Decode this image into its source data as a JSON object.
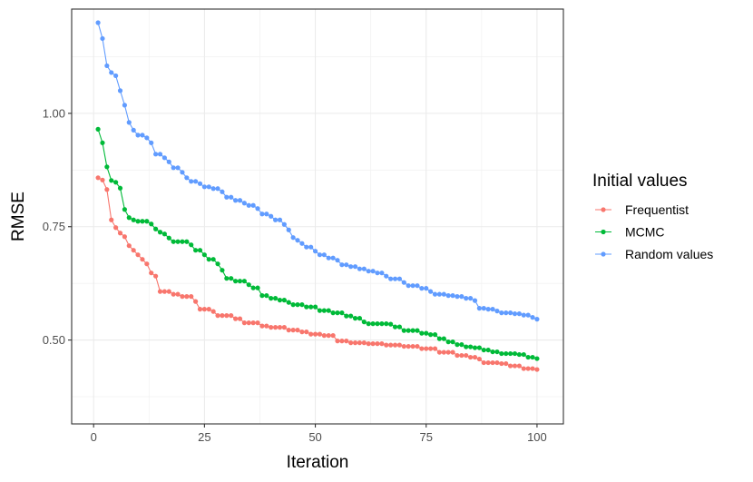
{
  "chart_data": {
    "type": "line",
    "xlabel": "Iteration",
    "ylabel": "RMSE",
    "xlim": [
      -4.95,
      105.95
    ],
    "ylim": [
      0.315,
      1.23
    ],
    "xticks": [
      0,
      25,
      50,
      75,
      100
    ],
    "xtick_labels": [
      "0",
      "25",
      "50",
      "75",
      "100"
    ],
    "yticks": [
      0.5,
      0.75,
      1.0
    ],
    "ytick_labels": [
      "0.50",
      "0.75",
      "1.00"
    ],
    "grid": true,
    "legend": {
      "title": "Initial values",
      "placement": "right",
      "entries": [
        "Frequentist",
        "MCMC",
        "Random values"
      ]
    },
    "series": [
      {
        "name": "Frequentist",
        "color": "#F8766D",
        "anchors": [
          [
            1,
            0.858
          ],
          [
            2,
            0.853
          ],
          [
            3,
            0.832
          ],
          [
            4,
            0.765
          ],
          [
            5,
            0.748
          ],
          [
            6,
            0.736
          ],
          [
            7,
            0.728
          ],
          [
            8,
            0.708
          ],
          [
            9,
            0.698
          ],
          [
            10,
            0.688
          ],
          [
            11,
            0.678
          ],
          [
            12,
            0.668
          ],
          [
            13,
            0.648
          ],
          [
            14,
            0.641
          ],
          [
            15,
            0.607
          ],
          [
            18,
            0.601
          ],
          [
            20,
            0.596
          ],
          [
            23,
            0.585
          ],
          [
            24,
            0.568
          ],
          [
            27,
            0.563
          ],
          [
            28,
            0.554
          ],
          [
            32,
            0.547
          ],
          [
            34,
            0.538
          ],
          [
            38,
            0.531
          ],
          [
            40,
            0.528
          ],
          [
            44,
            0.522
          ],
          [
            47,
            0.518
          ],
          [
            49,
            0.513
          ],
          [
            52,
            0.51
          ],
          [
            55,
            0.498
          ],
          [
            58,
            0.494
          ],
          [
            62,
            0.492
          ],
          [
            66,
            0.489
          ],
          [
            70,
            0.486
          ],
          [
            74,
            0.481
          ],
          [
            78,
            0.473
          ],
          [
            82,
            0.466
          ],
          [
            85,
            0.462
          ],
          [
            87,
            0.458
          ],
          [
            88,
            0.45
          ],
          [
            92,
            0.448
          ],
          [
            94,
            0.443
          ],
          [
            97,
            0.437
          ],
          [
            100,
            0.435
          ]
        ]
      },
      {
        "name": "MCMC",
        "color": "#00BA38",
        "anchors": [
          [
            1,
            0.965
          ],
          [
            2,
            0.935
          ],
          [
            3,
            0.882
          ],
          [
            4,
            0.852
          ],
          [
            5,
            0.848
          ],
          [
            6,
            0.835
          ],
          [
            7,
            0.788
          ],
          [
            8,
            0.77
          ],
          [
            9,
            0.765
          ],
          [
            10,
            0.762
          ],
          [
            13,
            0.756
          ],
          [
            14,
            0.745
          ],
          [
            15,
            0.738
          ],
          [
            16,
            0.734
          ],
          [
            17,
            0.725
          ],
          [
            18,
            0.717
          ],
          [
            22,
            0.71
          ],
          [
            23,
            0.698
          ],
          [
            25,
            0.688
          ],
          [
            26,
            0.678
          ],
          [
            28,
            0.668
          ],
          [
            29,
            0.654
          ],
          [
            30,
            0.636
          ],
          [
            32,
            0.63
          ],
          [
            35,
            0.622
          ],
          [
            36,
            0.615
          ],
          [
            38,
            0.598
          ],
          [
            40,
            0.592
          ],
          [
            42,
            0.588
          ],
          [
            44,
            0.583
          ],
          [
            45,
            0.578
          ],
          [
            48,
            0.573
          ],
          [
            51,
            0.565
          ],
          [
            54,
            0.56
          ],
          [
            57,
            0.553
          ],
          [
            59,
            0.548
          ],
          [
            61,
            0.54
          ],
          [
            62,
            0.536
          ],
          [
            67,
            0.535
          ],
          [
            68,
            0.529
          ],
          [
            70,
            0.521
          ],
          [
            74,
            0.515
          ],
          [
            76,
            0.512
          ],
          [
            78,
            0.503
          ],
          [
            80,
            0.496
          ],
          [
            82,
            0.49
          ],
          [
            84,
            0.485
          ],
          [
            86,
            0.483
          ],
          [
            88,
            0.478
          ],
          [
            90,
            0.474
          ],
          [
            92,
            0.47
          ],
          [
            96,
            0.468
          ],
          [
            98,
            0.462
          ],
          [
            100,
            0.459
          ]
        ]
      },
      {
        "name": "Random values",
        "color": "#619CFF",
        "anchors": [
          [
            1,
            1.2
          ],
          [
            2,
            1.165
          ],
          [
            3,
            1.105
          ],
          [
            4,
            1.09
          ],
          [
            5,
            1.083
          ],
          [
            6,
            1.05
          ],
          [
            7,
            1.018
          ],
          [
            8,
            0.98
          ],
          [
            9,
            0.963
          ],
          [
            10,
            0.952
          ],
          [
            12,
            0.946
          ],
          [
            13,
            0.935
          ],
          [
            14,
            0.91
          ],
          [
            16,
            0.902
          ],
          [
            17,
            0.893
          ],
          [
            18,
            0.88
          ],
          [
            20,
            0.87
          ],
          [
            21,
            0.858
          ],
          [
            22,
            0.85
          ],
          [
            24,
            0.845
          ],
          [
            25,
            0.838
          ],
          [
            27,
            0.834
          ],
          [
            29,
            0.827
          ],
          [
            30,
            0.815
          ],
          [
            32,
            0.808
          ],
          [
            34,
            0.802
          ],
          [
            35,
            0.797
          ],
          [
            37,
            0.79
          ],
          [
            38,
            0.778
          ],
          [
            40,
            0.773
          ],
          [
            41,
            0.765
          ],
          [
            43,
            0.755
          ],
          [
            44,
            0.743
          ],
          [
            45,
            0.726
          ],
          [
            46,
            0.72
          ],
          [
            47,
            0.713
          ],
          [
            48,
            0.705
          ],
          [
            50,
            0.696
          ],
          [
            51,
            0.688
          ],
          [
            53,
            0.681
          ],
          [
            55,
            0.676
          ],
          [
            56,
            0.666
          ],
          [
            58,
            0.662
          ],
          [
            60,
            0.657
          ],
          [
            62,
            0.652
          ],
          [
            64,
            0.648
          ],
          [
            66,
            0.641
          ],
          [
            67,
            0.635
          ],
          [
            70,
            0.627
          ],
          [
            71,
            0.62
          ],
          [
            74,
            0.614
          ],
          [
            76,
            0.607
          ],
          [
            77,
            0.601
          ],
          [
            80,
            0.598
          ],
          [
            82,
            0.596
          ],
          [
            84,
            0.592
          ],
          [
            86,
            0.587
          ],
          [
            87,
            0.57
          ],
          [
            89,
            0.568
          ],
          [
            91,
            0.564
          ],
          [
            92,
            0.56
          ],
          [
            95,
            0.558
          ],
          [
            97,
            0.555
          ],
          [
            99,
            0.55
          ],
          [
            100,
            0.546
          ]
        ]
      }
    ]
  }
}
